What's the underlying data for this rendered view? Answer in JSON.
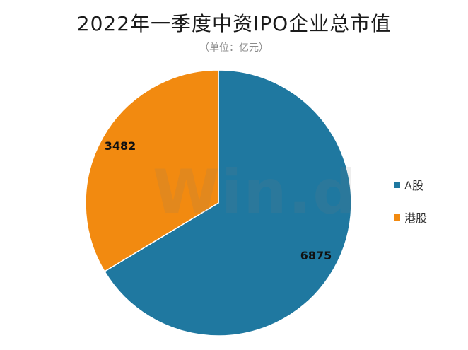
{
  "chart_data": {
    "type": "pie",
    "title": "2022年一季度中资IPO企业总市值",
    "subtitle": "（单位：亿元）",
    "watermark": "Win.d",
    "legend_position": "right",
    "slices": [
      {
        "label": "A股",
        "value": 6875,
        "color": "#1f78a0"
      },
      {
        "label": "港股",
        "value": 3482,
        "color": "#f28a10"
      }
    ]
  }
}
